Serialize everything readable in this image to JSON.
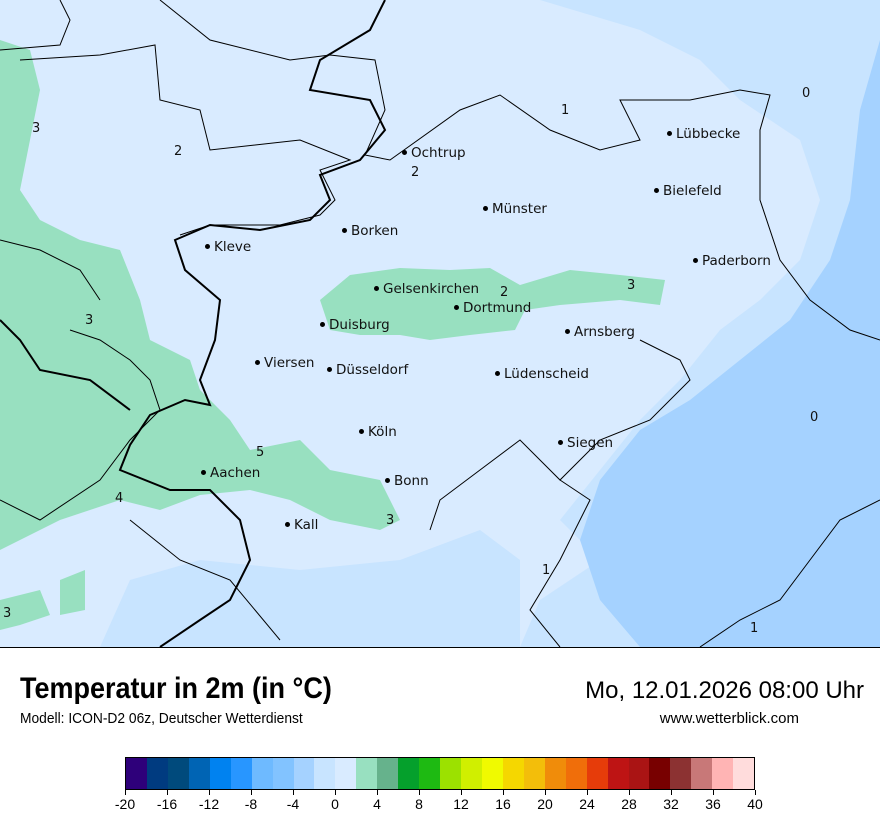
{
  "header": {
    "title": "Temperatur in 2m (in °C)",
    "subtitle": "Modell: ICON-D2 06z, Deutscher Wetterdienst",
    "datetime": "Mo, 12.01.2026 08:00 Uhr",
    "website": "www.wetterblick.com"
  },
  "map": {
    "background_color": "#d6e9ff",
    "cities": [
      {
        "name": "Ochtrup"
      },
      {
        "name": "Münster"
      },
      {
        "name": "Borken"
      },
      {
        "name": "Kleve"
      },
      {
        "name": "Gelsenkirchen"
      },
      {
        "name": "Dortmund"
      },
      {
        "name": "Duisburg"
      },
      {
        "name": "Arnsberg"
      },
      {
        "name": "Viersen"
      },
      {
        "name": "Düsseldorf"
      },
      {
        "name": "Lüdenscheid"
      },
      {
        "name": "Köln"
      },
      {
        "name": "Siegen"
      },
      {
        "name": "Aachen"
      },
      {
        "name": "Bonn"
      },
      {
        "name": "Kall"
      },
      {
        "name": "Lübbecke"
      },
      {
        "name": "Bielefeld"
      },
      {
        "name": "Paderborn"
      }
    ],
    "contour_labels": [
      "1",
      "0",
      "3",
      "2",
      "2",
      "3",
      "3",
      "2",
      "0",
      "5",
      "4",
      "3",
      "1",
      "3",
      "1"
    ]
  },
  "colorbar": {
    "unit": "°C",
    "min": -20,
    "max": 40,
    "step": 2,
    "tick_labels": [
      "-20",
      "-16",
      "-12",
      "-8",
      "-4",
      "0",
      "4",
      "8",
      "12",
      "16",
      "20",
      "24",
      "28",
      "32",
      "36",
      "40"
    ],
    "colors": [
      "#2e007a",
      "#003b80",
      "#004a7c",
      "#0064b4",
      "#0082f0",
      "#2896ff",
      "#6ebaff",
      "#82c3ff",
      "#a5d2ff",
      "#c8e4ff",
      "#d9ebff",
      "#98e0c0",
      "#66b28c",
      "#05a02c",
      "#1eba12",
      "#9ce100",
      "#d0ef00",
      "#f0fa00",
      "#f5d700",
      "#f3be0a",
      "#f08c0a",
      "#f06e0a",
      "#e63c0a",
      "#be1414",
      "#aa1414",
      "#780000",
      "#8c3232",
      "#c87878",
      "#ffb4b4",
      "#ffdcdc"
    ]
  }
}
